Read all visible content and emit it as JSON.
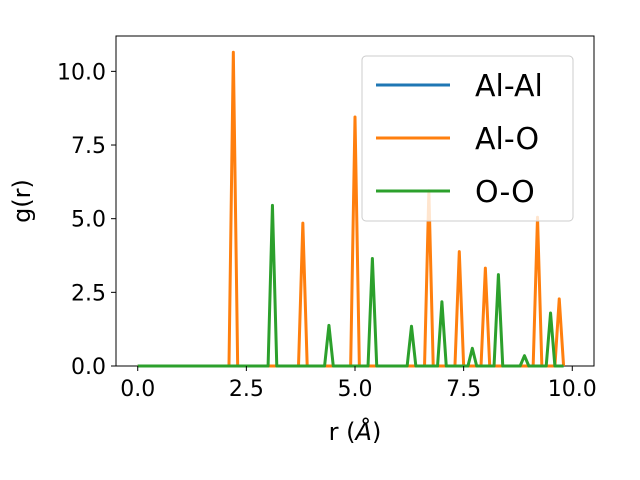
{
  "chart_data": {
    "type": "line",
    "xlabel_main": "r (",
    "xlabel_unit": "Å",
    "xlabel_close": ")",
    "ylabel": "g(r)",
    "xlim": [
      -0.5,
      10.5
    ],
    "ylim": [
      0,
      11.2
    ],
    "xticks": [
      0.0,
      2.5,
      5.0,
      7.5,
      10.0
    ],
    "xtick_labels": [
      "0.0",
      "2.5",
      "5.0",
      "7.5",
      "10.0"
    ],
    "yticks": [
      0.0,
      2.5,
      5.0,
      7.5,
      10.0
    ],
    "ytick_labels": [
      "0.0",
      "2.5",
      "5.0",
      "7.5",
      "10.0"
    ],
    "grid": false,
    "legend_position": "top-right",
    "series": [
      {
        "name": "Al-Al",
        "color": "#1f77b4",
        "x": [
          0.0,
          9.8
        ],
        "y": [
          0.0,
          0.0
        ]
      },
      {
        "name": "Al-O",
        "color": "#ff7f0e",
        "x": [
          0.0,
          2.1,
          2.2,
          2.3,
          3.7,
          3.8,
          3.9,
          4.9,
          5.0,
          5.1,
          6.6,
          6.7,
          6.8,
          7.3,
          7.4,
          7.5,
          7.9,
          8.0,
          8.1,
          9.1,
          9.2,
          9.3,
          9.6,
          9.7,
          9.8
        ],
        "y": [
          0.0,
          0.0,
          10.65,
          0.0,
          0.0,
          4.85,
          0.0,
          0.0,
          8.45,
          0.0,
          0.0,
          5.95,
          0.0,
          0.0,
          3.88,
          0.0,
          0.0,
          3.32,
          0.0,
          0.0,
          5.05,
          0.0,
          0.0,
          2.28,
          0.0
        ]
      },
      {
        "name": "O-O",
        "color": "#2ca02c",
        "x": [
          0.0,
          3.0,
          3.1,
          3.2,
          4.3,
          4.4,
          4.5,
          5.3,
          5.4,
          5.5,
          6.2,
          6.3,
          6.4,
          6.9,
          7.0,
          7.1,
          7.6,
          7.7,
          7.8,
          8.2,
          8.3,
          8.4,
          8.8,
          8.9,
          9.0,
          9.4,
          9.5,
          9.6,
          9.8
        ],
        "y": [
          0.0,
          0.0,
          5.45,
          0.0,
          0.0,
          1.38,
          0.0,
          0.0,
          3.65,
          0.0,
          0.0,
          1.35,
          0.0,
          0.0,
          2.18,
          0.0,
          0.0,
          0.6,
          0.0,
          0.0,
          3.1,
          0.0,
          0.0,
          0.35,
          0.0,
          0.0,
          1.8,
          0.0,
          0.0
        ]
      }
    ]
  }
}
